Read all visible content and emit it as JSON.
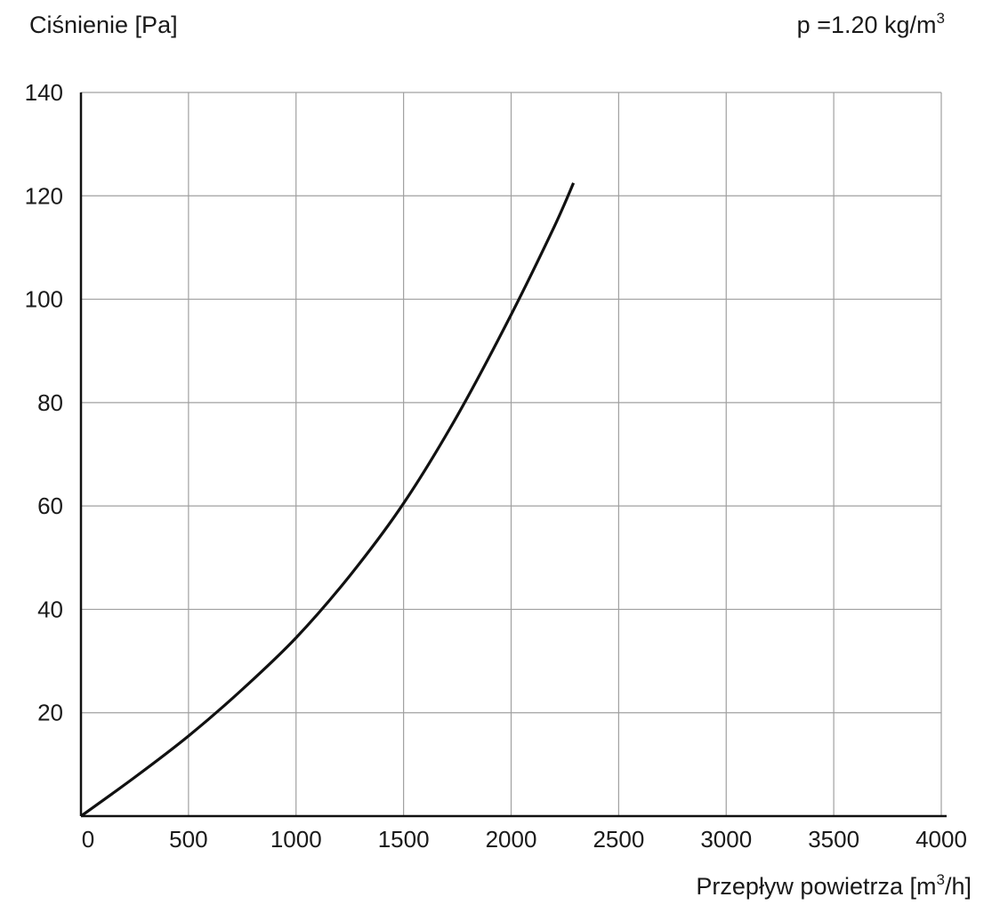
{
  "chart_data": {
    "type": "line",
    "ylabel": "Ciśnienie [Pa]",
    "xlabel": "Przepływ powietrza [m³/h]",
    "xlabel_main": "Przepływ powietrza [m",
    "xlabel_sup": "3",
    "xlabel_end": "/h]",
    "annotation": "p =1.20 kg/m³",
    "annotation_main": "p =1.20 kg/m",
    "annotation_sup": "3",
    "xlim": [
      0,
      4000
    ],
    "ylim": [
      0,
      140
    ],
    "x_ticks": [
      "0",
      "500",
      "1000",
      "1500",
      "2000",
      "2500",
      "3000",
      "3500",
      "4000"
    ],
    "y_ticks": [
      "20",
      "40",
      "60",
      "80",
      "100",
      "120",
      "140"
    ],
    "grid": true,
    "legend": "none",
    "line_color": "#111111",
    "grid_color": "#a0a0a0",
    "series": [
      {
        "x": [
          0,
          250,
          500,
          750,
          1000,
          1250,
          1500,
          1750,
          2000,
          2200,
          2290
        ],
        "y": [
          0,
          7.5,
          15.5,
          24.5,
          34.5,
          46.5,
          60.5,
          77.5,
          97,
          114,
          122.5
        ]
      }
    ]
  }
}
